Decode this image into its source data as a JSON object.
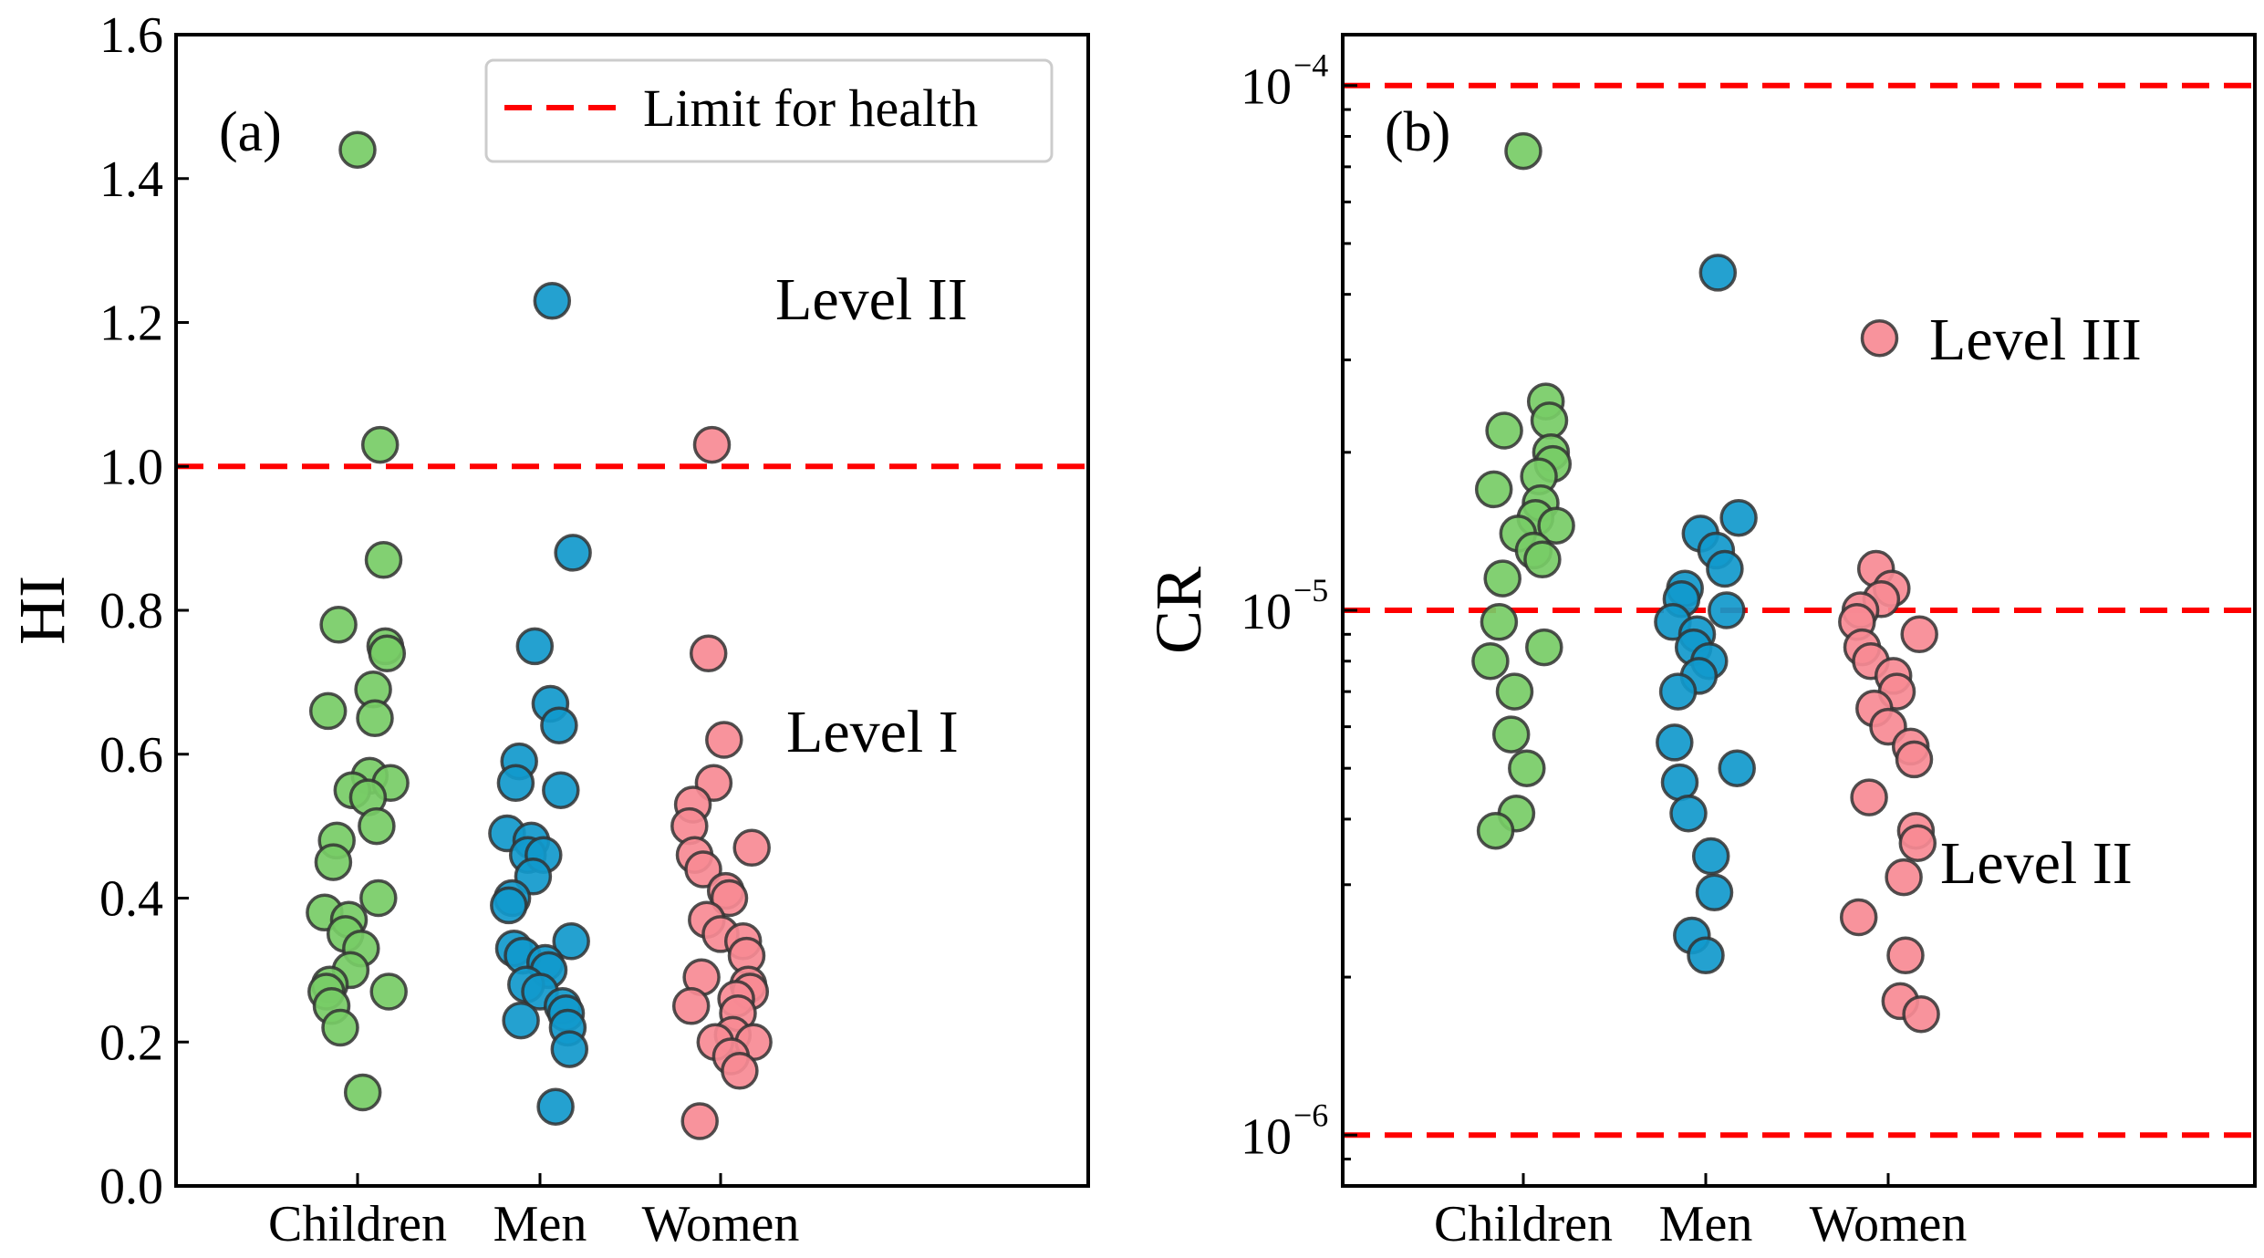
{
  "chart_data": [
    {
      "type": "scatter",
      "panel": "(a)",
      "ylabel": "HI",
      "yscale": "linear",
      "ylim": [
        0.0,
        1.6
      ],
      "yticks": [
        "0.0",
        "0.2",
        "0.4",
        "0.6",
        "0.8",
        "1.0",
        "1.2",
        "1.4",
        "1.6"
      ],
      "categories": [
        "Children",
        "Men",
        "Women"
      ],
      "reference_lines": [
        {
          "value": 1.0,
          "label": "Limit for health",
          "color": "#ff0000"
        }
      ],
      "annotations": [
        {
          "text": "Level II",
          "y": 1.23
        },
        {
          "text": "Level I",
          "y": 0.63
        }
      ],
      "legend": {
        "entry": "Limit for health",
        "position": "top-right"
      },
      "series": [
        {
          "name": "Children",
          "color": "#77cc66",
          "values": [
            1.44,
            1.03,
            0.87,
            0.78,
            0.75,
            0.74,
            0.69,
            0.66,
            0.65,
            0.57,
            0.56,
            0.55,
            0.54,
            0.5,
            0.48,
            0.45,
            0.4,
            0.38,
            0.37,
            0.35,
            0.33,
            0.3,
            0.28,
            0.27,
            0.27,
            0.25,
            0.22,
            0.13
          ]
        },
        {
          "name": "Men",
          "color": "#1199cc",
          "values": [
            1.23,
            0.88,
            0.75,
            0.67,
            0.64,
            0.59,
            0.56,
            0.55,
            0.49,
            0.48,
            0.46,
            0.46,
            0.43,
            0.4,
            0.39,
            0.34,
            0.33,
            0.32,
            0.31,
            0.3,
            0.28,
            0.27,
            0.25,
            0.24,
            0.23,
            0.22,
            0.19,
            0.11
          ]
        },
        {
          "name": "Women",
          "color": "#f78a94",
          "values": [
            1.03,
            0.74,
            0.62,
            0.56,
            0.53,
            0.5,
            0.47,
            0.46,
            0.44,
            0.41,
            0.4,
            0.37,
            0.35,
            0.34,
            0.32,
            0.29,
            0.28,
            0.27,
            0.26,
            0.25,
            0.24,
            0.21,
            0.2,
            0.2,
            0.18,
            0.16,
            0.09
          ]
        }
      ]
    },
    {
      "type": "scatter",
      "panel": "(b)",
      "ylabel": "CR",
      "yscale": "log",
      "ylim": [
        8e-07,
        0.000125
      ],
      "yticks": [
        {
          "base": "10",
          "exp": "−4",
          "value": 0.0001
        },
        {
          "base": "10",
          "exp": "−5",
          "value": 1e-05
        },
        {
          "base": "10",
          "exp": "−6",
          "value": 1e-06
        }
      ],
      "categories": [
        "Children",
        "Men",
        "Women"
      ],
      "reference_lines": [
        {
          "value": 0.0001
        },
        {
          "value": 1e-05
        },
        {
          "value": 1e-06
        }
      ],
      "annotations": [
        {
          "text": "Level III",
          "y": 3.2e-05
        },
        {
          "text": "Level II",
          "y": 3.3e-06
        }
      ],
      "series": [
        {
          "name": "Children",
          "color": "#77cc66",
          "values": [
            7.5e-05,
            2.5e-05,
            2.3e-05,
            2.2e-05,
            2e-05,
            1.9e-05,
            1.8e-05,
            1.7e-05,
            1.6e-05,
            1.5e-05,
            1.45e-05,
            1.4e-05,
            1.3e-05,
            1.25e-05,
            1.15e-05,
            9.5e-06,
            8.5e-06,
            8e-06,
            7e-06,
            5.8e-06,
            5e-06,
            4.1e-06,
            3.8e-06
          ]
        },
        {
          "name": "Men",
          "color": "#1199cc",
          "values": [
            4.4e-05,
            1.5e-05,
            1.4e-05,
            1.3e-05,
            1.2e-05,
            1.1e-05,
            1.05e-05,
            1e-05,
            9.5e-06,
            9e-06,
            8.5e-06,
            8e-06,
            7.5e-06,
            7e-06,
            5.6e-06,
            5e-06,
            4.7e-06,
            4.1e-06,
            3.4e-06,
            2.9e-06,
            2.4e-06,
            2.2e-06
          ]
        },
        {
          "name": "Women",
          "color": "#f78a94",
          "values": [
            3.3e-05,
            1.2e-05,
            1.1e-05,
            1.05e-05,
            1e-05,
            9.5e-06,
            9e-06,
            8.5e-06,
            8e-06,
            7.5e-06,
            7e-06,
            6.5e-06,
            6e-06,
            5.5e-06,
            5.2e-06,
            4.4e-06,
            3.8e-06,
            3.6e-06,
            3.1e-06,
            2.6e-06,
            2.2e-06,
            1.8e-06,
            1.7e-06
          ]
        }
      ]
    }
  ]
}
